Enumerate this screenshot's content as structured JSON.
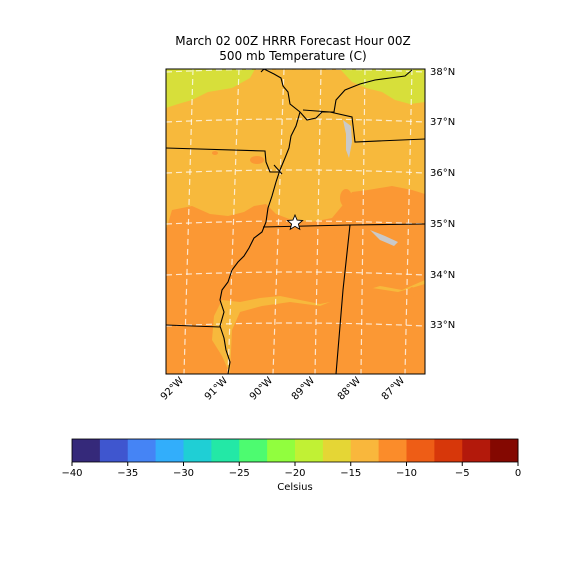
{
  "title": {
    "line1": "March 02 00Z HRRR Forecast Hour 00Z",
    "line2": "500 mb Temperature (C)"
  },
  "map": {
    "lat_labels": [
      "38°N",
      "37°N",
      "36°N",
      "35°N",
      "34°N",
      "33°N"
    ],
    "lon_labels": [
      "92°W",
      "91°W",
      "90°W",
      "89°W",
      "88°W",
      "87°W"
    ],
    "marker": "white-star",
    "field_colors": {
      "light": "#d7df3a",
      "mid": "#f7b93c",
      "warm": "#fb9834",
      "gridline": "#ffffff"
    }
  },
  "colorbar": {
    "label": "Celsius",
    "ticks": [
      "−40",
      "−35",
      "−30",
      "−25",
      "−20",
      "−15",
      "−10",
      "−5",
      "0"
    ],
    "colors": [
      "#35297a",
      "#3f56cf",
      "#4584f5",
      "#32aefb",
      "#1fcfd5",
      "#23e8a6",
      "#4dfb70",
      "#91fe3e",
      "#c1f134",
      "#e5d635",
      "#f9b73c",
      "#fb8c2a",
      "#ee5d16",
      "#d7370a",
      "#b3190b",
      "#840801"
    ]
  }
}
